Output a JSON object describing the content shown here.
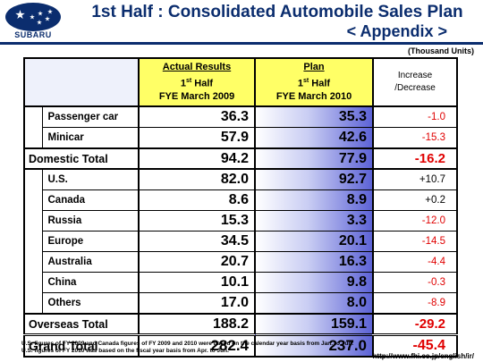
{
  "header": {
    "brand": "SUBARU",
    "title": "1st Half : Consolidated Automobile Sales Plan",
    "subtitle": "< Appendix >",
    "units": "(Thousand Units)"
  },
  "table": {
    "col_actual": {
      "line1": "Actual Results",
      "line2_pre": "1",
      "line2_sup": "st",
      "line2_post": " Half",
      "line3": "FYE March 2009"
    },
    "col_plan": {
      "line1": "Plan",
      "line2_pre": "1",
      "line2_sup": "st",
      "line2_post": " Half",
      "line3": "FYE March 2010"
    },
    "col_diff": {
      "line1": "Increase",
      "line2": "/Decrease"
    },
    "domestic": [
      {
        "label": "Passenger car",
        "actual": "36.3",
        "plan": "35.3",
        "diff": "-1.0"
      },
      {
        "label": "Minicar",
        "actual": "57.9",
        "plan": "42.6",
        "diff": "-15.3"
      }
    ],
    "domestic_total": {
      "label": "Domestic Total",
      "actual": "94.2",
      "plan": "77.9",
      "diff": "-16.2"
    },
    "overseas": [
      {
        "label": "U.S.",
        "actual": "82.0",
        "plan": "92.7",
        "diff": "+10.7"
      },
      {
        "label": "Canada",
        "actual": "8.6",
        "plan": "8.9",
        "diff": "+0.2"
      },
      {
        "label": "Russia",
        "actual": "15.3",
        "plan": "3.3",
        "diff": "-12.0"
      },
      {
        "label": "Europe",
        "actual": "34.5",
        "plan": "20.1",
        "diff": "-14.5"
      },
      {
        "label": "Australia",
        "actual": "20.7",
        "plan": "16.3",
        "diff": "-4.4"
      },
      {
        "label": "China",
        "actual": "10.1",
        "plan": "9.8",
        "diff": "-0.3"
      },
      {
        "label": "Others",
        "actual": "17.0",
        "plan": "8.0",
        "diff": "-8.9"
      }
    ],
    "overseas_total": {
      "label": "Overseas Total",
      "actual": "188.2",
      "plan": "159.1",
      "diff": "-29.2"
    },
    "grand_total": {
      "label": "Grand Total",
      "actual": "282.4",
      "plan": "237.0",
      "diff": "-45.4"
    }
  },
  "notes": {
    "note1": "U.S. figures of FY 2009 and Canada figures of FY 2009 and 2010 were based on the calendar year basis from Jan. to Jun.",
    "note2": "U.S. figures of FY 2010 was based on the fiscal year basis from Apr. to Jun.",
    "url": "http://www.fhi.co.jp/english/ir/"
  },
  "colors": {
    "brand_blue": "#0b2d6e",
    "header_yellow": "#ffff66",
    "negative_red": "#e00000",
    "plan_gradient_end": "#5d63d6"
  }
}
